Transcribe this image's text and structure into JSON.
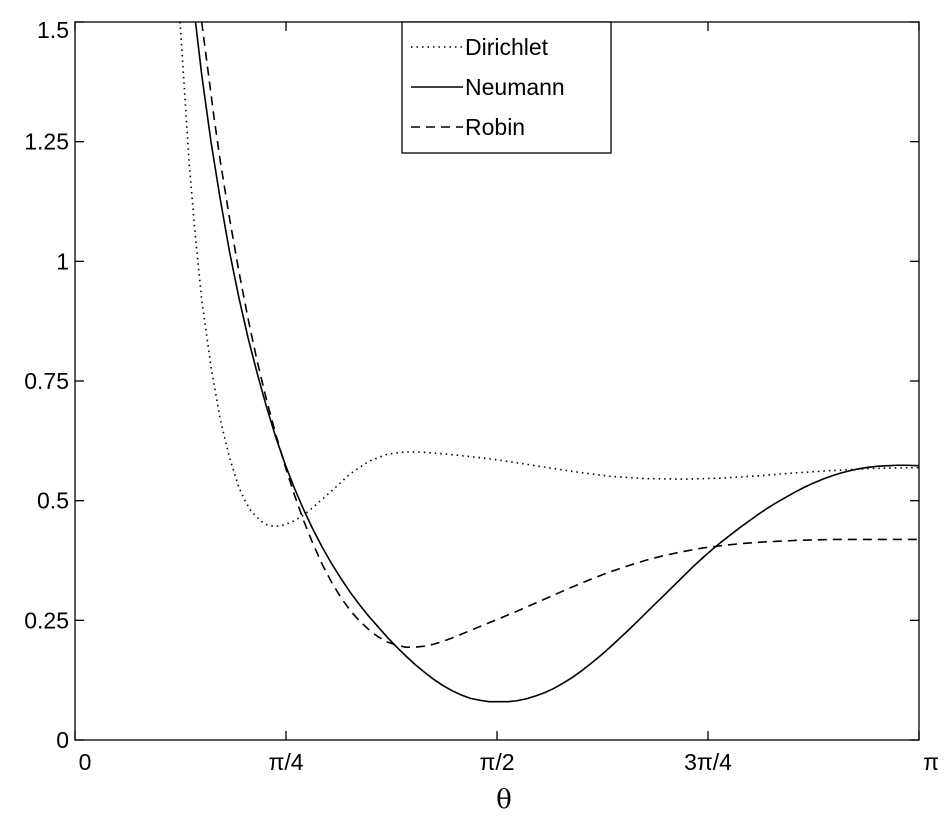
{
  "chart_data": {
    "type": "line",
    "title": "",
    "xlabel": "θ",
    "ylabel": "",
    "xlim": [
      0,
      3.14159
    ],
    "ylim": [
      0,
      1.5
    ],
    "grid": false,
    "legend_position": "top-center",
    "x_ticks": [
      {
        "value": 0,
        "label": "0"
      },
      {
        "value": 0.7854,
        "label": "π/4"
      },
      {
        "value": 1.5708,
        "label": "π/2"
      },
      {
        "value": 2.3562,
        "label": "3π/4"
      },
      {
        "value": 3.14159,
        "label": "π"
      }
    ],
    "y_ticks": [
      {
        "value": 0,
        "label": "0"
      },
      {
        "value": 0.25,
        "label": "0.25"
      },
      {
        "value": 0.5,
        "label": "0.5"
      },
      {
        "value": 0.75,
        "label": "0.75"
      },
      {
        "value": 1,
        "label": "1"
      },
      {
        "value": 1.25,
        "label": "1.25"
      },
      {
        "value": 1.5,
        "label": "1.5"
      }
    ],
    "series": [
      {
        "name": "Dirichlet",
        "line_style": "dotted",
        "color": "#000000",
        "x": [
          0.3912,
          0.4026,
          0.4141,
          0.4256,
          0.4486,
          0.4716,
          0.5061,
          0.5406,
          0.5752,
          0.6097,
          0.6327,
          0.6557,
          0.6902,
          0.7132,
          0.7362,
          0.7592,
          0.7822,
          0.8167,
          0.8512,
          0.8857,
          0.9547,
          1.0238,
          1.0928,
          1.1618,
          1.2308,
          1.2999,
          1.3689,
          1.4379,
          1.5069,
          1.576,
          1.714,
          1.8521,
          1.9901,
          2.1282,
          2.2662,
          2.4043,
          2.5423,
          2.6804,
          2.8184,
          2.9565,
          3.0945,
          3.1416
        ],
        "y": [
          1.5,
          1.4,
          1.3,
          1.2,
          1.05,
          0.92,
          0.78,
          0.67,
          0.59,
          0.528,
          0.5,
          0.478,
          0.458,
          0.45,
          0.447,
          0.447,
          0.45,
          0.458,
          0.47,
          0.486,
          0.52,
          0.556,
          0.582,
          0.597,
          0.602,
          0.601,
          0.598,
          0.594,
          0.59,
          0.585,
          0.573,
          0.561,
          0.551,
          0.546,
          0.545,
          0.547,
          0.552,
          0.558,
          0.563,
          0.567,
          0.569,
          0.569
        ]
      },
      {
        "name": "Neumann",
        "line_style": "solid",
        "color": "#000000",
        "x": [
          0.4486,
          0.4716,
          0.5061,
          0.5406,
          0.5752,
          0.6097,
          0.6442,
          0.6787,
          0.7132,
          0.7477,
          0.7822,
          0.8167,
          0.8512,
          0.8857,
          0.9202,
          0.9547,
          0.9893,
          1.0238,
          1.0583,
          1.0928,
          1.1273,
          1.1618,
          1.1963,
          1.2308,
          1.2653,
          1.2999,
          1.3344,
          1.3689,
          1.4034,
          1.4379,
          1.4724,
          1.5069,
          1.5415,
          1.576,
          1.6105,
          1.645,
          1.6795,
          1.714,
          1.7485,
          1.783,
          1.8176,
          1.8521,
          1.8866,
          1.9211,
          1.9556,
          1.9901,
          2.0246,
          2.0592,
          2.0937,
          2.1282,
          2.1627,
          2.1972,
          2.2317,
          2.2662,
          2.3007,
          2.3352,
          2.3698,
          2.4043,
          2.4388,
          2.4733,
          2.5078,
          2.5423,
          2.5768,
          2.6114,
          2.6459,
          2.6804,
          2.7149,
          2.7494,
          2.7839,
          2.8184,
          2.8529,
          2.8874,
          2.922,
          2.9565,
          2.991,
          3.0255,
          3.06,
          3.0945,
          3.1416
        ],
        "y": [
          1.5,
          1.39,
          1.25,
          1.13,
          1.02,
          0.925,
          0.84,
          0.765,
          0.695,
          0.632,
          0.576,
          0.526,
          0.481,
          0.44,
          0.403,
          0.369,
          0.338,
          0.309,
          0.283,
          0.259,
          0.237,
          0.215,
          0.195,
          0.176,
          0.158,
          0.142,
          0.127,
          0.114,
          0.103,
          0.094,
          0.087,
          0.083,
          0.08,
          0.08,
          0.08,
          0.082,
          0.086,
          0.092,
          0.099,
          0.108,
          0.119,
          0.131,
          0.145,
          0.16,
          0.176,
          0.193,
          0.211,
          0.229,
          0.248,
          0.267,
          0.286,
          0.305,
          0.324,
          0.343,
          0.362,
          0.38,
          0.397,
          0.413,
          0.428,
          0.443,
          0.457,
          0.471,
          0.484,
          0.496,
          0.507,
          0.518,
          0.528,
          0.537,
          0.545,
          0.552,
          0.558,
          0.563,
          0.567,
          0.57,
          0.572,
          0.573,
          0.574,
          0.574,
          0.573
        ]
      },
      {
        "name": "Robin",
        "line_style": "dashed",
        "color": "#000000",
        "x": [
          0.4716,
          0.4946,
          0.5176,
          0.5406,
          0.5752,
          0.6097,
          0.6442,
          0.6787,
          0.7132,
          0.7477,
          0.7822,
          0.8167,
          0.8512,
          0.8857,
          0.9202,
          0.9547,
          0.9893,
          1.0238,
          1.0583,
          1.0928,
          1.1273,
          1.1618,
          1.1963,
          1.2308,
          1.2653,
          1.2999,
          1.3344,
          1.3689,
          1.4034,
          1.4379,
          1.4724,
          1.5069,
          1.5415,
          1.576,
          1.645,
          1.714,
          1.783,
          1.8521,
          1.9211,
          1.9901,
          2.0592,
          2.1282,
          2.1972,
          2.2662,
          2.3352,
          2.4043,
          2.4733,
          2.5423,
          2.6114,
          2.6804,
          2.7494,
          2.8184,
          2.8874,
          2.9565,
          3.0255,
          3.0945,
          3.1416
        ],
        "y": [
          1.5,
          1.4,
          1.3,
          1.21,
          1.09,
          0.98,
          0.88,
          0.79,
          0.71,
          0.638,
          0.572,
          0.512,
          0.458,
          0.41,
          0.367,
          0.33,
          0.298,
          0.271,
          0.249,
          0.231,
          0.216,
          0.205,
          0.198,
          0.194,
          0.194,
          0.196,
          0.2,
          0.206,
          0.213,
          0.221,
          0.229,
          0.237,
          0.245,
          0.253,
          0.269,
          0.286,
          0.303,
          0.32,
          0.336,
          0.351,
          0.364,
          0.376,
          0.386,
          0.394,
          0.401,
          0.406,
          0.41,
          0.413,
          0.415,
          0.417,
          0.418,
          0.419,
          0.419,
          0.419,
          0.419,
          0.419,
          0.419
        ]
      }
    ]
  }
}
